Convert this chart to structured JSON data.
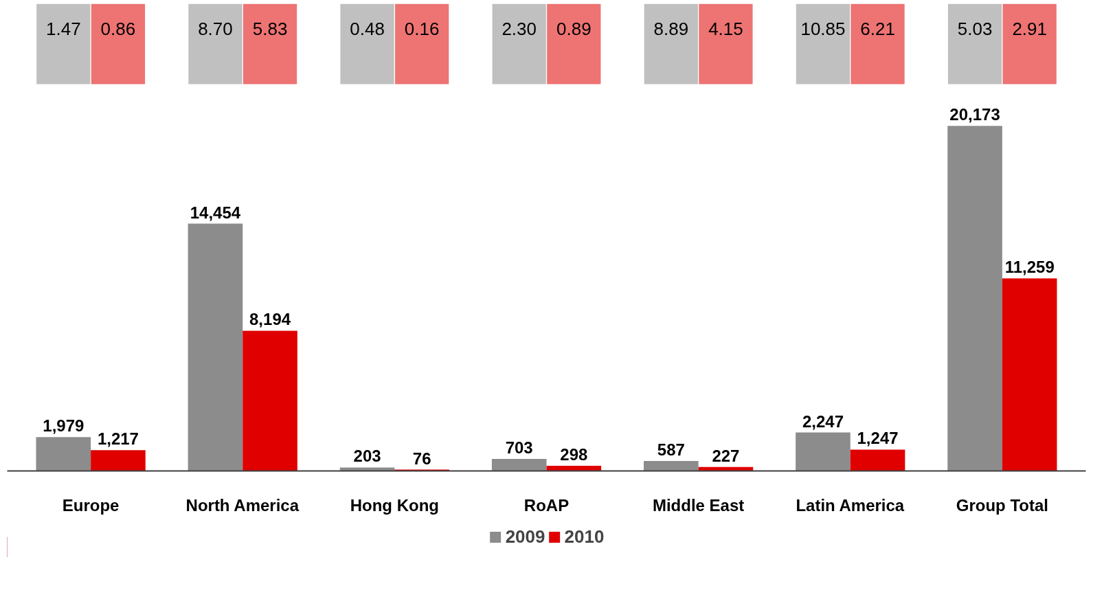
{
  "chart_data": {
    "type": "bar",
    "categories": [
      "Europe",
      "North America",
      "Hong Kong",
      "RoAP",
      "Middle East",
      "Latin America",
      "Group Total"
    ],
    "series": [
      {
        "name": "2009",
        "color": "#8c8c8c",
        "values": [
          1979,
          14454,
          203,
          703,
          587,
          2247,
          20173
        ],
        "value_labels": [
          "1,979",
          "14,454",
          "203",
          "703",
          "587",
          "2,247",
          "20,173"
        ]
      },
      {
        "name": "2010",
        "color": "#e00000",
        "values": [
          1217,
          8194,
          76,
          298,
          227,
          1247,
          11259
        ],
        "value_labels": [
          "1,217",
          "8,194",
          "76",
          "298",
          "227",
          "1,247",
          "11,259"
        ]
      }
    ],
    "annotations": [
      "1.47",
      "0.86",
      "8.70",
      "5.83",
      "0.48",
      "0.16",
      "2.30",
      "0.89",
      "8.89",
      "4.15",
      "10.85",
      "6.21",
      "5.03",
      "2.91"
    ],
    "tick_labels": "x",
    "grid": false,
    "legend": "bottom"
  }
}
